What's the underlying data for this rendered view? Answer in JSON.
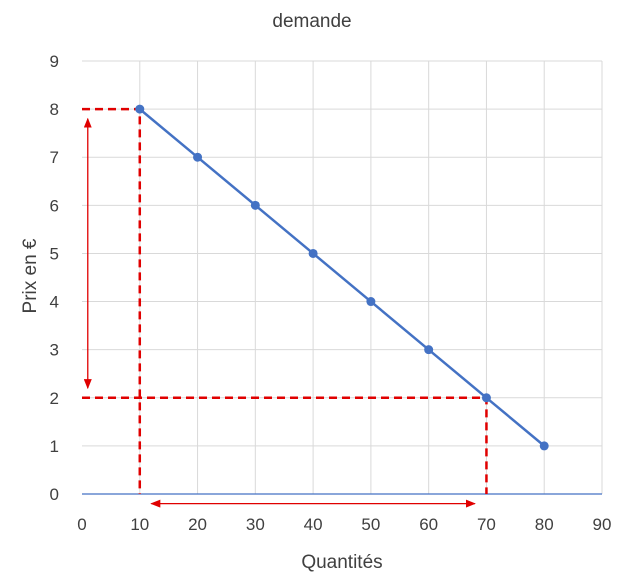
{
  "chart_data": {
    "type": "line",
    "title": "demande",
    "xlabel": "Quantités",
    "ylabel": "Prix en €",
    "xlim": [
      0,
      90
    ],
    "ylim": [
      0,
      9
    ],
    "x_ticks": [
      0,
      10,
      20,
      30,
      40,
      50,
      60,
      70,
      80,
      90
    ],
    "y_ticks": [
      0,
      1,
      2,
      3,
      4,
      5,
      6,
      7,
      8,
      9
    ],
    "grid": true,
    "series": [
      {
        "x": [
          10,
          20,
          30,
          40,
          50,
          60,
          70,
          80
        ],
        "y": [
          8,
          7,
          6,
          5,
          4,
          3,
          2,
          1
        ],
        "color": "#4472c4",
        "markers": true
      }
    ],
    "annotations": [
      {
        "kind": "dashed-guide",
        "points": [
          [
            0,
            8
          ],
          [
            10,
            8
          ],
          [
            10,
            0
          ]
        ],
        "color": "#e00000"
      },
      {
        "kind": "dashed-guide",
        "points": [
          [
            0,
            2
          ],
          [
            70,
            2
          ],
          [
            70,
            0
          ]
        ],
        "color": "#e00000"
      },
      {
        "kind": "double-arrow",
        "from": [
          1,
          7.8
        ],
        "to": [
          1,
          2.2
        ],
        "color": "#e00000"
      },
      {
        "kind": "double-arrow",
        "from": [
          12,
          -0.2
        ],
        "to": [
          68,
          -0.2
        ],
        "color": "#e00000"
      }
    ]
  }
}
